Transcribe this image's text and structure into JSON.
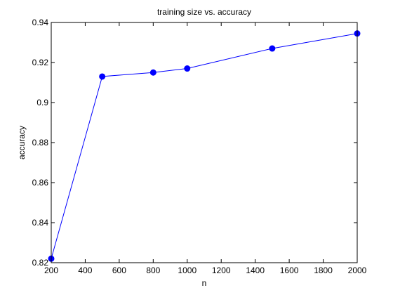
{
  "chart_data": {
    "type": "line",
    "title": "training size vs. accuracy",
    "xlabel": "n",
    "ylabel": "accuracy",
    "xlim": [
      200,
      2000
    ],
    "ylim": [
      0.82,
      0.94
    ],
    "xticks": [
      200,
      400,
      600,
      800,
      1000,
      1200,
      1400,
      1600,
      1800,
      2000
    ],
    "xtick_labels": [
      "200",
      "400",
      "600",
      "800",
      "1000",
      "1200",
      "1400",
      "1600",
      "1800",
      "2000"
    ],
    "yticks": [
      0.82,
      0.84,
      0.86,
      0.88,
      0.9,
      0.92,
      0.94
    ],
    "ytick_labels": [
      "0.82",
      "0.84",
      "0.86",
      "0.88",
      "0.9",
      "0.92",
      "0.94"
    ],
    "grid": false,
    "series": [
      {
        "x": [
          200,
          500,
          800,
          1000,
          1500,
          2000
        ],
        "y": [
          0.822,
          0.913,
          0.915,
          0.917,
          0.927,
          0.9345
        ],
        "color": "#0000ff",
        "marker": "circle"
      }
    ]
  }
}
